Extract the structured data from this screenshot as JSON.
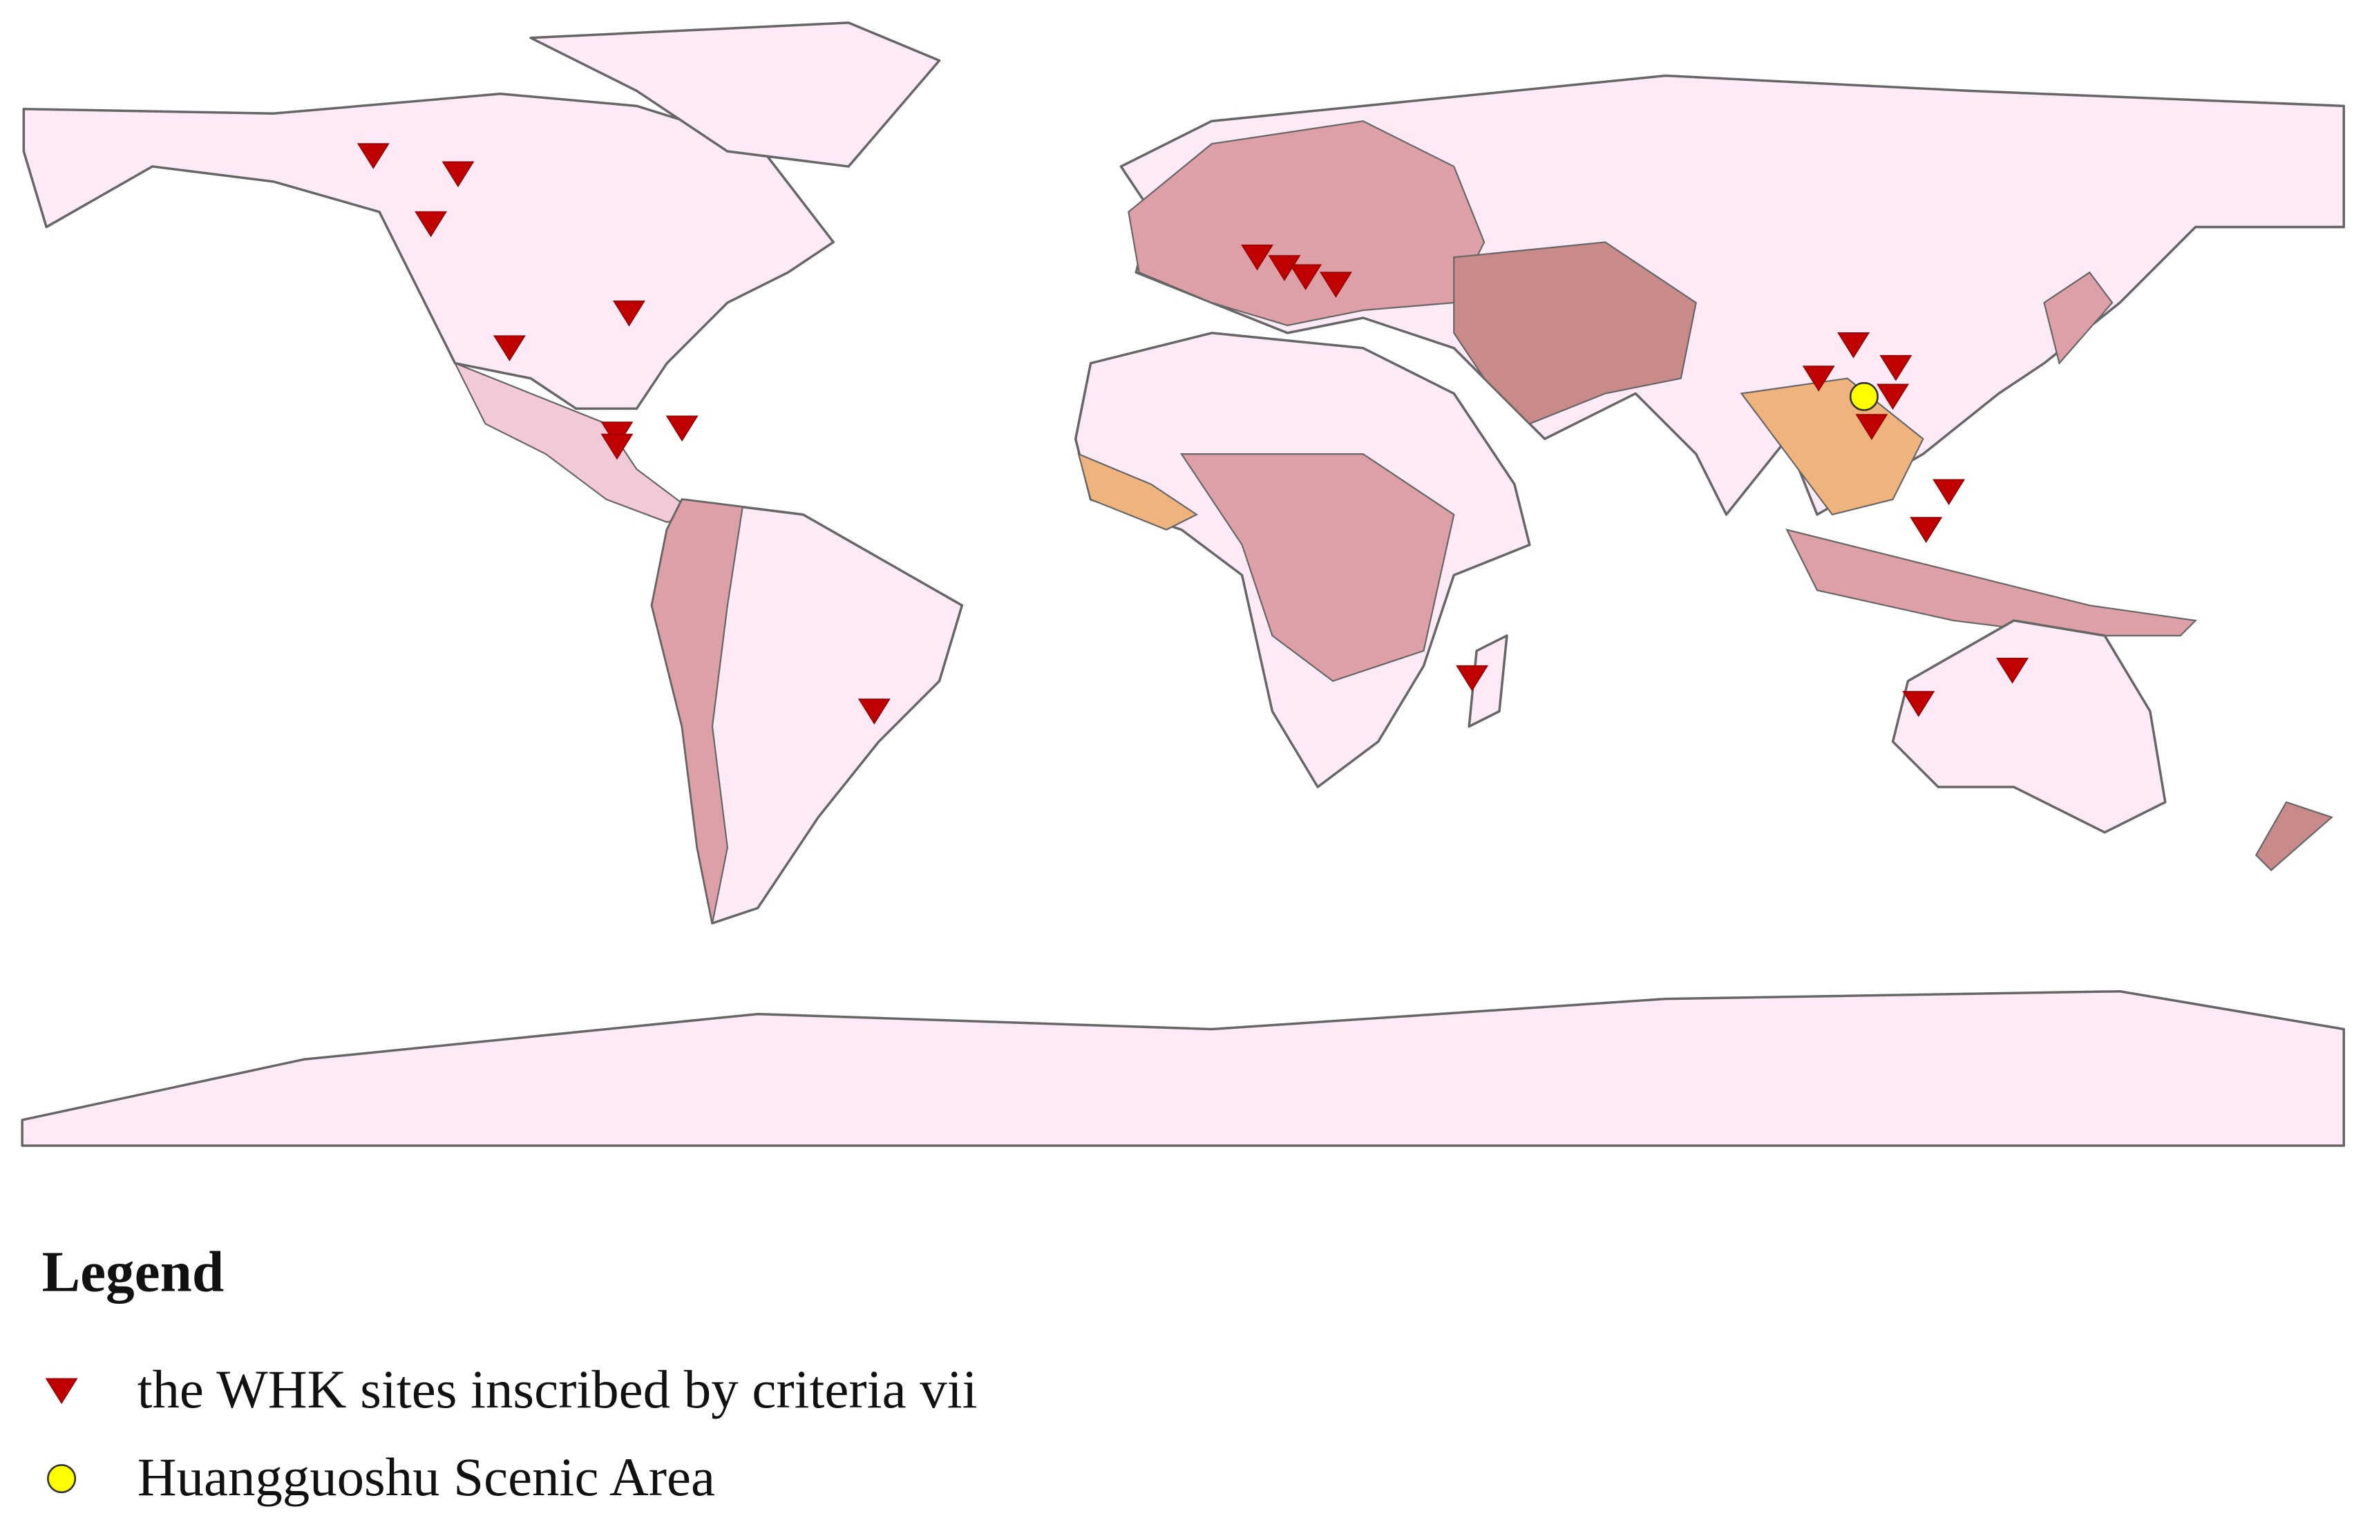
{
  "legend": {
    "title": "Legend",
    "items": [
      {
        "label": "the WHK sites inscribed by criteria vii"
      },
      {
        "label": "Huangguoshu Scenic Area"
      }
    ]
  }
}
